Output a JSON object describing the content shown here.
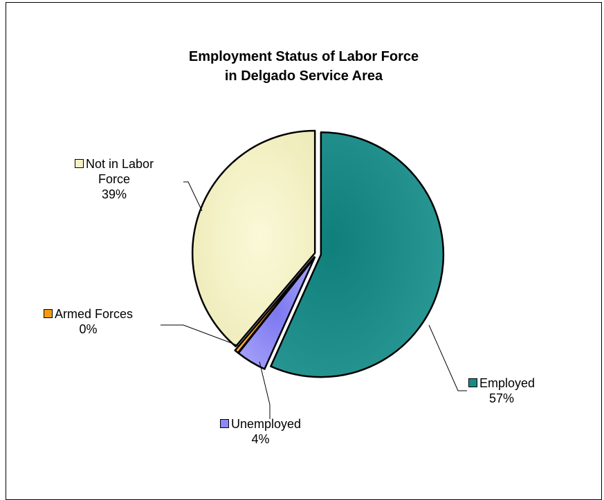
{
  "chart_data": {
    "type": "pie",
    "title_lines": [
      "Employment Status of Labor Force",
      "in Delgado Service Area"
    ],
    "slices": [
      {
        "name": "Employed",
        "value": 57,
        "pct_label": "57%",
        "color": "#1a8a87"
      },
      {
        "name": "Unemployed",
        "value": 4,
        "pct_label": "4%",
        "color": "#8c88f5"
      },
      {
        "name": "Armed Forces",
        "value": 0.5,
        "pct_label": "0%",
        "color": "#f49a12"
      },
      {
        "name": "Not in Labor Force",
        "value": 39,
        "pct_label": "39%",
        "color": "#f5f2c4"
      }
    ],
    "label_lines": {
      "employed": [
        "Employed",
        "57%"
      ],
      "unemployed": [
        "Unemployed",
        "4%"
      ],
      "armed": [
        "Armed Forces",
        "0%"
      ],
      "notlabor": [
        "Not in Labor",
        "Force",
        "39%"
      ]
    },
    "legend_position": "none (labels on slices with leader lines)"
  }
}
